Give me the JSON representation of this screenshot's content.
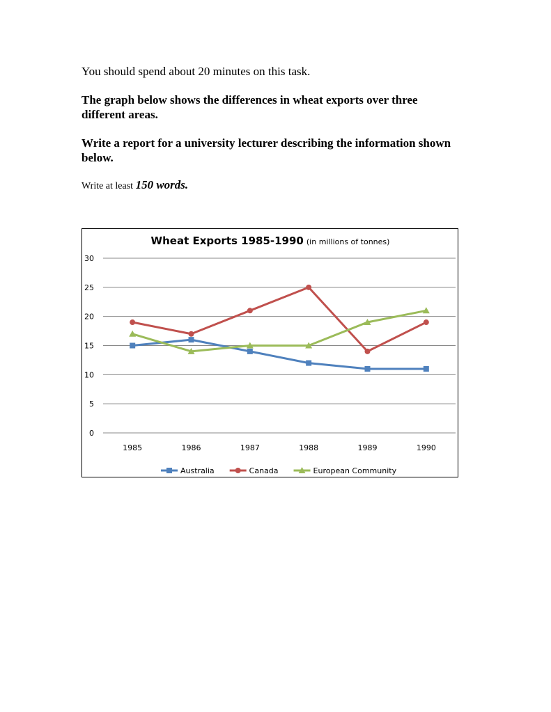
{
  "instructions": {
    "time": "You should spend about 20 minutes on this task.",
    "graph_desc": "The graph below shows the differences in wheat exports over three different areas.",
    "task": "Write a report for a university lecturer describing the information shown below.",
    "min_prefix": "Write at least ",
    "min_words": "150 words."
  },
  "chart_data": {
    "type": "line",
    "title": "Wheat Exports 1985-1990",
    "subtitle": "(in millions of tonnes)",
    "xlabel": "",
    "ylabel": "",
    "categories": [
      "1985",
      "1986",
      "1987",
      "1988",
      "1989",
      "1990"
    ],
    "ylim": [
      0,
      30
    ],
    "yticks": [
      "0",
      "5",
      "10",
      "15",
      "20",
      "25",
      "30"
    ],
    "grid": true,
    "legend": "bottom",
    "series": [
      {
        "name": "Australia",
        "color": "#4f81bd",
        "marker": "square",
        "values": [
          15,
          16,
          14,
          12,
          11,
          11
        ]
      },
      {
        "name": "Canada",
        "color": "#c0504d",
        "marker": "circle",
        "values": [
          19,
          17,
          21,
          25,
          14,
          19
        ]
      },
      {
        "name": "European Community",
        "color": "#9bbb59",
        "marker": "triangle",
        "values": [
          17,
          14,
          15,
          15,
          19,
          21
        ]
      }
    ]
  }
}
